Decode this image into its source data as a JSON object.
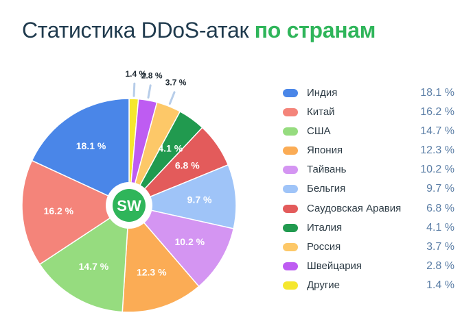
{
  "header": {
    "title_main": "Статистика DDoS-атак",
    "title_accent": "по странам"
  },
  "logo": {
    "text": "SW"
  },
  "colors": {
    "accent": "#2fb55a",
    "title": "#1f3a4d",
    "value_text": "#5b7ea6"
  },
  "chart_data": {
    "type": "pie",
    "variant": "donut",
    "unit": "%",
    "legend_position": "right",
    "categories": [
      "Индия",
      "Китай",
      "США",
      "Япония",
      "Тайвань",
      "Бельгия",
      "Саудовская Аравия",
      "Италия",
      "Россия",
      "Швейцария",
      "Другие"
    ],
    "values": [
      18.1,
      16.2,
      14.7,
      12.3,
      10.2,
      9.7,
      6.8,
      4.1,
      3.7,
      2.8,
      1.4
    ],
    "labels": [
      "18.1 %",
      "16.2 %",
      "14.7 %",
      "12.3 %",
      "10.2 %",
      "9.7 %",
      "6.8 %",
      "4.1 %",
      "3.7 %",
      "2.8 %",
      "1.4 %"
    ],
    "colors": [
      "#4a86e8",
      "#f4847a",
      "#96dc7f",
      "#fbac55",
      "#d495f2",
      "#9fc4f8",
      "#e35b5b",
      "#219a4f",
      "#fdc868",
      "#be5cf2",
      "#f5e72e"
    ]
  }
}
